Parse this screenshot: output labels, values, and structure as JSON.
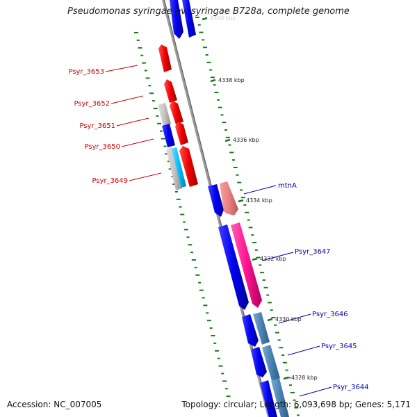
{
  "title": "Pseudomonas syringae pv. syringae B728a, complete genome",
  "footer": {
    "accession": "Accession: NC_007005",
    "summary": "Topology: circular; Length: 6,093,698 bp; Genes: 5,171"
  },
  "ticks": [
    {
      "label": "4340 kbp"
    },
    {
      "label": "4338 kbp"
    },
    {
      "label": "4336 kbp"
    },
    {
      "label": "4334 kbp"
    },
    {
      "label": "4332 kbp"
    },
    {
      "label": "4330 kbp"
    },
    {
      "label": "4328 kbp"
    }
  ],
  "gene_labels": {
    "left": [
      "Psyr_3653",
      "Psyr_3652",
      "Psyr_3651",
      "Psyr_3650",
      "Psyr_3649"
    ],
    "right": [
      "mtnA",
      "Psyr_3647",
      "Psyr_3646",
      "Psyr_3645",
      "Psyr_3644"
    ]
  },
  "colors": {
    "cds_forward": "#0000ee",
    "gene_reverse": "#ee0000",
    "gc_skew_dots": "#1a7a1a",
    "backbone": "#888888",
    "label_left": "#cc0000",
    "label_right": "#0000aa"
  }
}
